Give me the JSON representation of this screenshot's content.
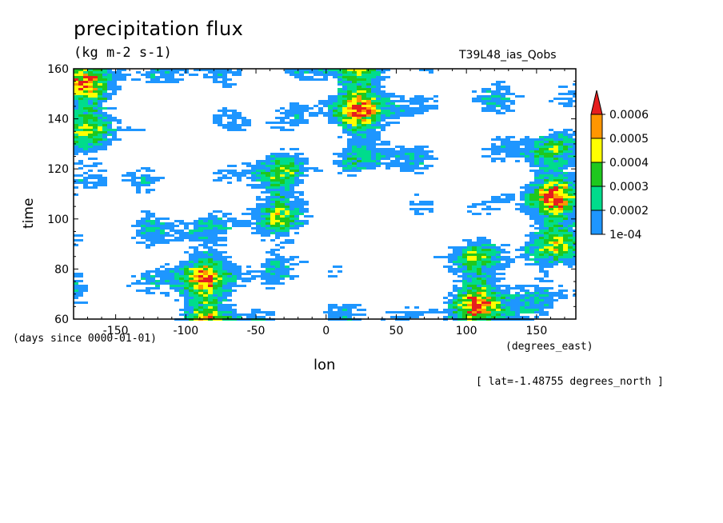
{
  "chart_data": {
    "type": "heatmap",
    "title": "precipitation flux",
    "units": "(kg m-2 s-1)",
    "dataset": "T39L48_ias_Qobs",
    "xlabel": "lon",
    "x_units": "(degrees_east)",
    "ylabel": "time",
    "y_units": "(days since 0000-01-01)",
    "note": "[ lat=-1.48755 degrees_north ]",
    "xlim": [
      -180,
      178
    ],
    "ylim": [
      60,
      160
    ],
    "x_ticks": [
      -150,
      -100,
      -50,
      0,
      50,
      100,
      150
    ],
    "x_tick_labels": [
      "-150",
      "-100",
      "-50",
      "0",
      "50",
      "100",
      "150"
    ],
    "y_ticks": [
      60,
      80,
      100,
      120,
      140,
      160
    ],
    "y_tick_labels": [
      "60",
      "80",
      "100",
      "120",
      "140",
      "160"
    ],
    "colorbar": {
      "levels": [
        0.0001,
        0.0002,
        0.0003,
        0.0004,
        0.0005,
        0.0006
      ],
      "labels": [
        "1e-04",
        "0.0002",
        "0.0003",
        "0.0004",
        "0.0005",
        "0.0006"
      ],
      "colors": [
        "#1e96ff",
        "#00dc8c",
        "#1ec81e",
        "#ffff00",
        "#ff9600",
        "#e61e1e"
      ],
      "extend": "max"
    },
    "background_color": "#ffffff"
  }
}
